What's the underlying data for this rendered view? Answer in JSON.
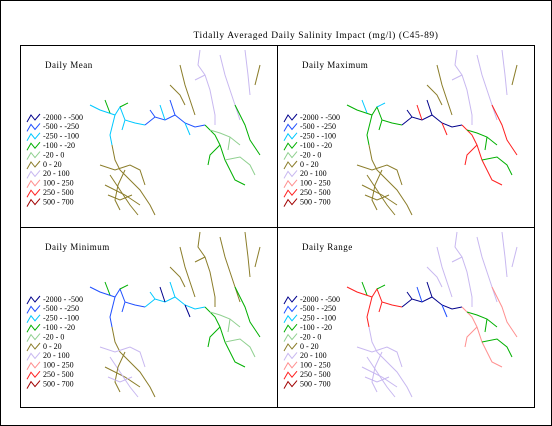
{
  "title": "Tidally Averaged Daily Salinity Impact (mg/l) (C45-89)",
  "panels": [
    {
      "title": "Daily Mean"
    },
    {
      "title": "Daily Maximum"
    },
    {
      "title": "Daily Minimum"
    },
    {
      "title": "Daily Range"
    }
  ],
  "legend": [
    {
      "label": "-2000 - -500",
      "color": "#00008b"
    },
    {
      "label": "-500 - -250",
      "color": "#2050ff"
    },
    {
      "label": "-250 - -100",
      "color": "#00c8ff"
    },
    {
      "label": "-100 - -20",
      "color": "#00b000"
    },
    {
      "label": "-20 - 0",
      "color": "#90d090"
    },
    {
      "label": "0 - 20",
      "color": "#8b7d2a"
    },
    {
      "label": "20 - 100",
      "color": "#c8b8f0"
    },
    {
      "label": "100 - 250",
      "color": "#ff9090"
    },
    {
      "label": "250 - 500",
      "color": "#ff2020"
    },
    {
      "label": "500 - 700",
      "color": "#a00000"
    }
  ]
}
